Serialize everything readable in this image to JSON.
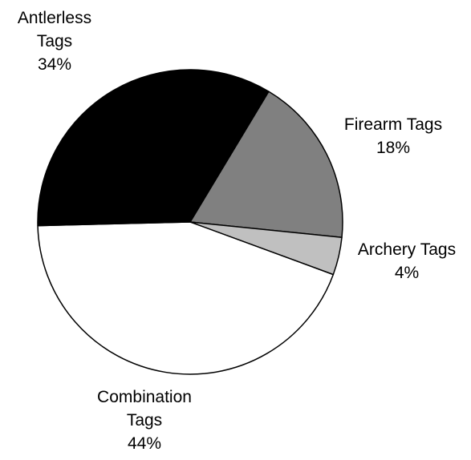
{
  "chart_data": {
    "type": "pie",
    "title": "",
    "start": "clockwise from the top-right boundary (Firearm Tags first)",
    "series": [
      {
        "categories": [
          "Firearm Tags",
          "Archery Tags",
          "Combination Tags",
          "Antlerless Tags"
        ],
        "values": [
          18,
          4,
          44,
          34
        ],
        "display": [
          "18%",
          "4%",
          "44%",
          "34%"
        ],
        "label_lines": [
          [
            "Firearm Tags",
            "18%"
          ],
          [
            "Archery Tags",
            "4%"
          ],
          [
            "Combination",
            "Tags",
            "44%"
          ],
          [
            "Antlerless",
            "Tags",
            "34%"
          ]
        ],
        "colors": [
          "#808080",
          "#c0c0c0",
          "#ffffff",
          "#000000"
        ]
      }
    ],
    "legend": "none",
    "outline_color": "#000000"
  }
}
